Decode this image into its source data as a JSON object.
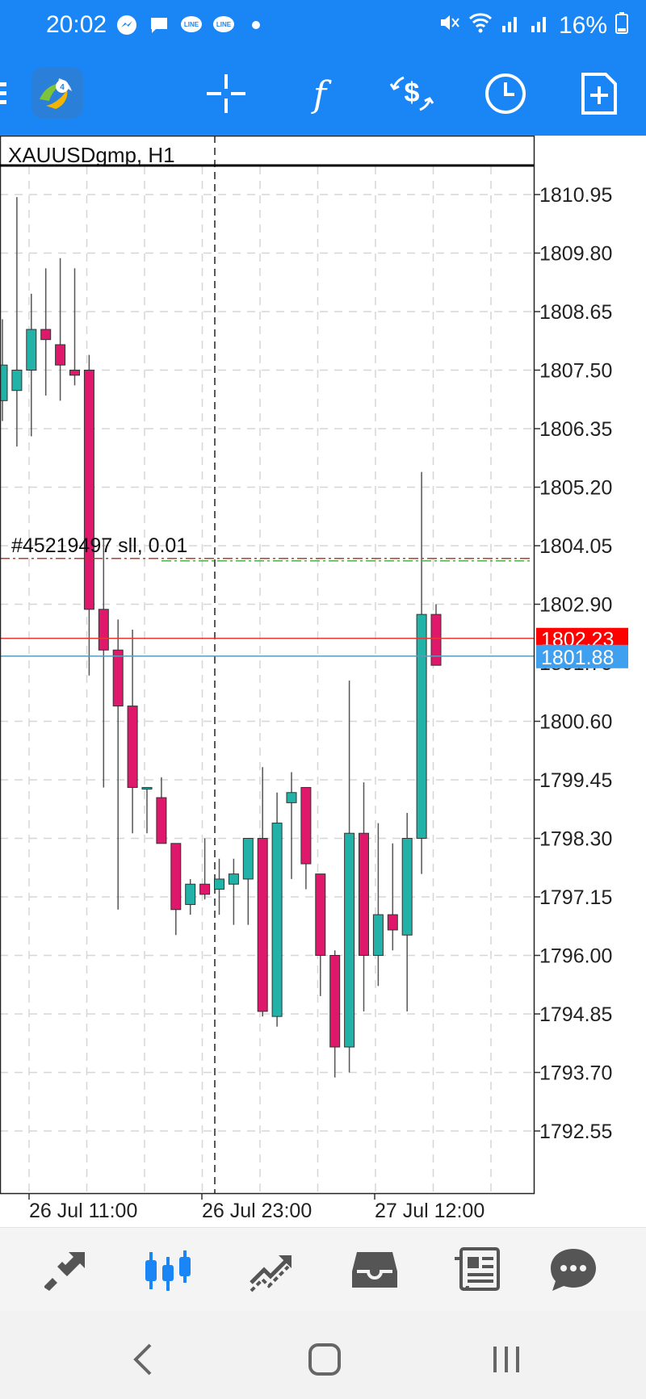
{
  "status_bar": {
    "time": "20:02",
    "battery": "16%"
  },
  "toolbar": {
    "icons": [
      "menu-icon",
      "metatrader-logo",
      "crosshair-icon",
      "indicators-icon",
      "trade-icon",
      "timeframe-icon",
      "new-order-icon"
    ]
  },
  "chart": {
    "symbol_label": "XAUUSDgmp, H1",
    "order_label": "#45219497 sll, 0.01",
    "price_ticks": [
      "1810.95",
      "1809.80",
      "1808.65",
      "1807.50",
      "1806.35",
      "1805.20",
      "1804.05",
      "1802.90",
      "1800.60",
      "1799.45",
      "1798.30",
      "1797.15",
      "1796.00",
      "1794.85",
      "1793.70",
      "1792.55"
    ],
    "time_ticks": [
      "26 Jul 11:00",
      "26 Jul 23:00",
      "27 Jul 12:00"
    ],
    "bid_price": "1801.88",
    "ask_price": "1802.23",
    "partial_tick": "1801.75",
    "colors": {
      "bull": "#22b2a8",
      "bear": "#e0186c",
      "ask_line": "#e53935",
      "bid_line": "#5a9bb8",
      "bid_label": "#3fa0f0",
      "ask_label": "#ff0000"
    }
  },
  "chart_data": {
    "type": "candlestick",
    "candles": [
      {
        "o": 1806.9,
        "h": 1808.5,
        "l": 1806.5,
        "c": 1807.6
      },
      {
        "o": 1807.1,
        "h": 1810.9,
        "l": 1806.0,
        "c": 1807.5
      },
      {
        "o": 1807.5,
        "h": 1809.0,
        "l": 1806.2,
        "c": 1808.3
      },
      {
        "o": 1808.3,
        "h": 1809.5,
        "l": 1807.0,
        "c": 1808.1
      },
      {
        "o": 1808.0,
        "h": 1809.7,
        "l": 1806.9,
        "c": 1807.6
      },
      {
        "o": 1807.5,
        "h": 1809.5,
        "l": 1807.2,
        "c": 1807.4
      },
      {
        "o": 1807.5,
        "h": 1807.8,
        "l": 1801.5,
        "c": 1802.8
      },
      {
        "o": 1802.8,
        "h": 1804.2,
        "l": 1799.3,
        "c": 1802.0
      },
      {
        "o": 1802.0,
        "h": 1802.6,
        "l": 1796.9,
        "c": 1800.9
      },
      {
        "o": 1800.9,
        "h": 1802.4,
        "l": 1798.4,
        "c": 1799.3
      },
      {
        "o": 1799.3,
        "h": 1799.3,
        "l": 1798.4,
        "c": 1799.3
      },
      {
        "o": 1799.1,
        "h": 1799.5,
        "l": 1798.2,
        "c": 1798.2
      },
      {
        "o": 1798.2,
        "h": 1798.2,
        "l": 1796.4,
        "c": 1796.9
      },
      {
        "o": 1797.0,
        "h": 1797.5,
        "l": 1796.8,
        "c": 1797.4
      },
      {
        "o": 1797.4,
        "h": 1798.3,
        "l": 1797.1,
        "c": 1797.2
      },
      {
        "o": 1797.3,
        "h": 1797.9,
        "l": 1796.8,
        "c": 1797.5
      },
      {
        "o": 1797.4,
        "h": 1797.9,
        "l": 1796.6,
        "c": 1797.6
      },
      {
        "o": 1797.5,
        "h": 1798.3,
        "l": 1796.6,
        "c": 1798.3
      },
      {
        "o": 1798.3,
        "h": 1799.7,
        "l": 1794.8,
        "c": 1794.9
      },
      {
        "o": 1794.8,
        "h": 1799.2,
        "l": 1794.6,
        "c": 1798.6
      },
      {
        "o": 1799.0,
        "h": 1799.6,
        "l": 1797.5,
        "c": 1799.2
      },
      {
        "o": 1799.3,
        "h": 1799.3,
        "l": 1797.3,
        "c": 1797.8
      },
      {
        "o": 1797.6,
        "h": 1797.6,
        "l": 1795.2,
        "c": 1796.0
      },
      {
        "o": 1796.0,
        "h": 1796.1,
        "l": 1793.6,
        "c": 1794.2
      },
      {
        "o": 1794.2,
        "h": 1801.4,
        "l": 1793.7,
        "c": 1798.4
      },
      {
        "o": 1798.4,
        "h": 1799.4,
        "l": 1794.9,
        "c": 1796.0
      },
      {
        "o": 1796.0,
        "h": 1798.6,
        "l": 1795.4,
        "c": 1796.8
      },
      {
        "o": 1796.8,
        "h": 1798.2,
        "l": 1796.1,
        "c": 1796.5
      },
      {
        "o": 1796.4,
        "h": 1798.8,
        "l": 1794.9,
        "c": 1798.3
      },
      {
        "o": 1798.3,
        "h": 1805.5,
        "l": 1797.6,
        "c": 1802.7
      },
      {
        "o": 1802.7,
        "h": 1802.9,
        "l": 1801.7,
        "c": 1801.7
      }
    ],
    "ylim": [
      1791.5,
      1812.0
    ],
    "levels": {
      "order": 1803.8,
      "ask": 1802.23,
      "bid": 1801.88
    }
  },
  "bottom_nav": {
    "items": [
      "quotes-icon",
      "chart-icon",
      "trade-icon",
      "history-icon",
      "news-icon",
      "messages-icon"
    ],
    "active": "chart-icon"
  },
  "system_nav": {
    "items": [
      "back-icon",
      "home-icon",
      "recents-icon"
    ]
  }
}
